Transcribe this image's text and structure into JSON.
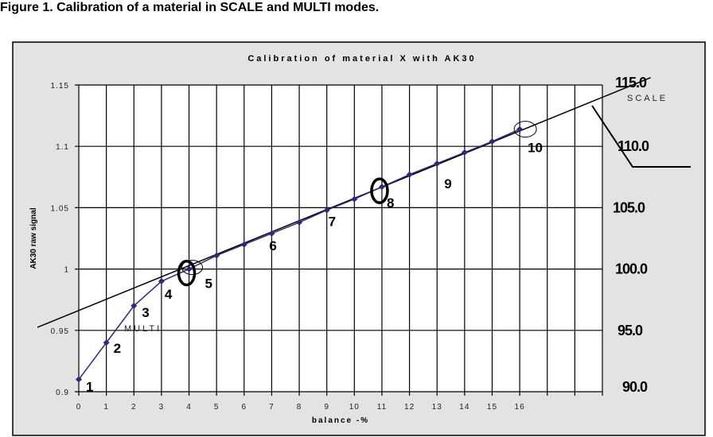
{
  "caption": "Figure 1. Calibration of a material in SCALE and MULTI modes.",
  "chart_data": {
    "type": "line",
    "title": "Calibration of material X with AK30",
    "xlabel": "balance -%",
    "ylabel": "AK30 raw signal",
    "xlim": [
      0,
      19
    ],
    "ylim": [
      0.9,
      1.15
    ],
    "x_ticks": [
      "0",
      "1",
      "2",
      "3",
      "4",
      "5",
      "6",
      "7",
      "8",
      "9",
      "10",
      "11",
      "12",
      "13",
      "14",
      "15",
      "16",
      "",
      ""
    ],
    "y_ticks": [
      "0.9",
      "0.95",
      "1",
      "1.05",
      "1.1",
      "1.15"
    ],
    "grid": true,
    "series": [
      {
        "name": "MULTI",
        "color": "#2e2a78",
        "marker": "diamond",
        "x": [
          0,
          1,
          2,
          3,
          4,
          5,
          6,
          7,
          8,
          9,
          10,
          11,
          12,
          13,
          14,
          15,
          16
        ],
        "y": [
          0.91,
          0.94,
          0.97,
          0.99,
          1.0,
          1.011,
          1.02,
          1.029,
          1.038,
          1.048,
          1.057,
          1.067,
          1.077,
          1.086,
          1.095,
          1.104,
          1.114
        ]
      },
      {
        "name": "SCALE",
        "color": "#000000",
        "x": [
          -1.5,
          20.75
        ],
        "y": [
          0.9525,
          1.156
        ]
      }
    ],
    "right_scale_labels": [
      "90.0",
      "95.0",
      "100.0",
      "105.0",
      "110.0",
      "115.0"
    ],
    "point_labels": [
      {
        "text": "1",
        "x": 0
      },
      {
        "text": "2",
        "x": 1
      },
      {
        "text": "3",
        "x": 2
      },
      {
        "text": "4",
        "x": 3
      },
      {
        "text": "5",
        "x": 4
      },
      {
        "text": "6",
        "x": 7
      },
      {
        "text": "7",
        "x": 9
      },
      {
        "text": "8",
        "x": 11
      },
      {
        "text": "9",
        "x": 13
      },
      {
        "text": "10",
        "x": 16
      }
    ],
    "circled_points": [
      4,
      11,
      16
    ],
    "plot_background": "#ffffff",
    "chart_background": "#e3e3e3"
  }
}
